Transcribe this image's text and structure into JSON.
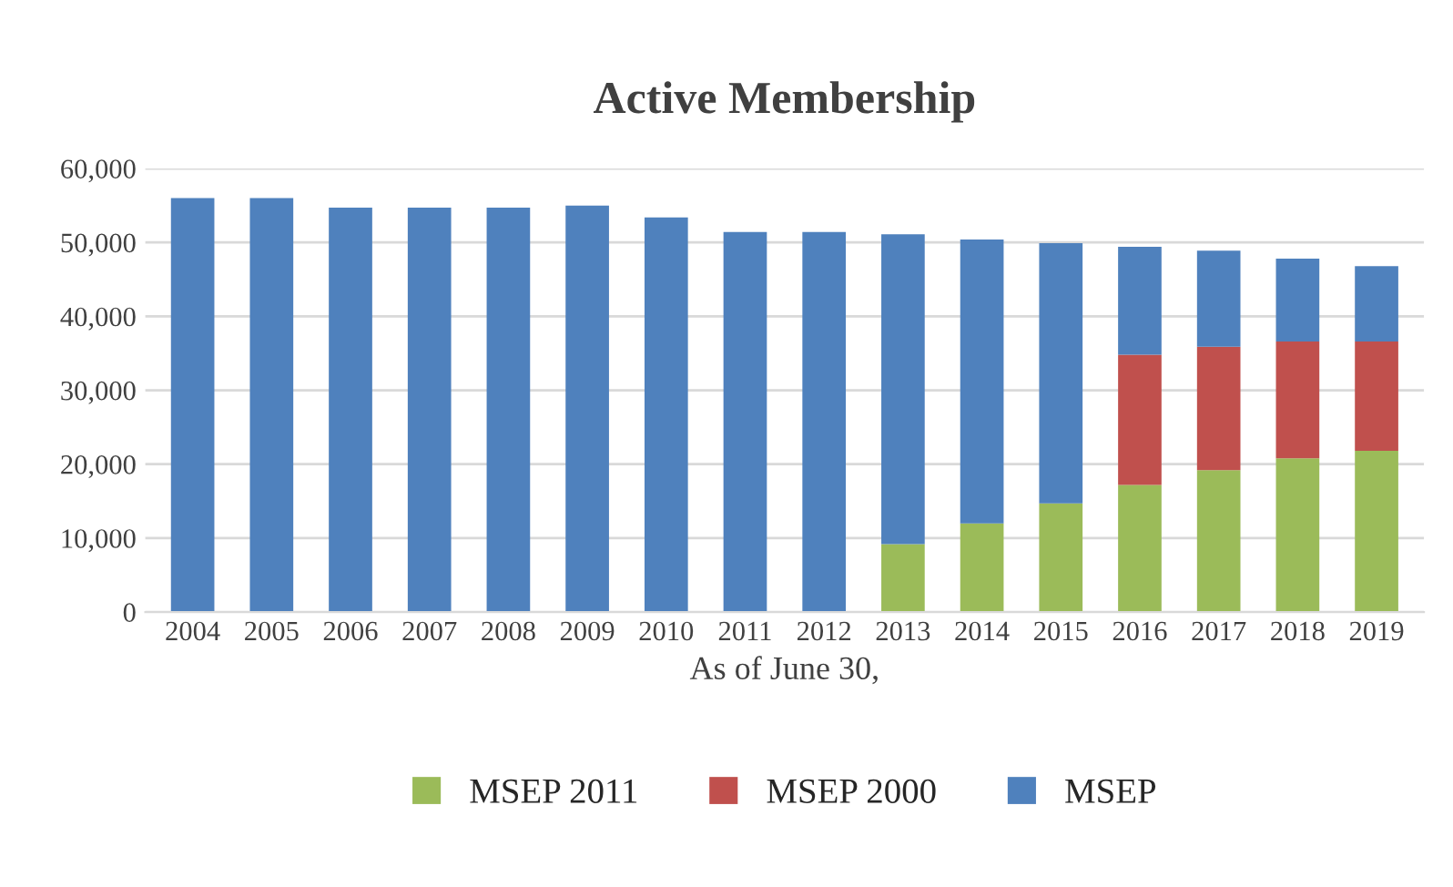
{
  "chart_data": {
    "type": "bar",
    "title": "Active Membership",
    "xlabel": "As of June 30,",
    "categories": [
      "2004",
      "2005",
      "2006",
      "2007",
      "2008",
      "2009",
      "2010",
      "2011",
      "2012",
      "2013",
      "2014",
      "2015",
      "2016",
      "2017",
      "2018",
      "2019"
    ],
    "stacked": true,
    "series": [
      {
        "name": "MSEP 2011",
        "color": "#9bbb59",
        "values": [
          0,
          0,
          0,
          0,
          0,
          0,
          0,
          0,
          0,
          9200,
          12000,
          14700,
          17200,
          19200,
          20800,
          21800
        ]
      },
      {
        "name": "MSEP 2000",
        "color": "#c0504d",
        "values": [
          0,
          0,
          0,
          0,
          0,
          0,
          0,
          0,
          0,
          0,
          0,
          0,
          17600,
          16700,
          15800,
          14800
        ]
      },
      {
        "name": "MSEP",
        "color": "#4f81bd",
        "values": [
          56000,
          56000,
          54700,
          54700,
          54700,
          55000,
          53400,
          51400,
          51400,
          41900,
          38400,
          35200,
          14600,
          13000,
          11200,
          10200
        ]
      }
    ],
    "ylim": [
      0,
      60000
    ],
    "yticks": [
      {
        "value": 0,
        "label": "0"
      },
      {
        "value": 10000,
        "label": "10,000"
      },
      {
        "value": 20000,
        "label": "20,000"
      },
      {
        "value": 30000,
        "label": "30,000"
      },
      {
        "value": 40000,
        "label": "40,000"
      },
      {
        "value": 50000,
        "label": "50,000"
      },
      {
        "value": 60000,
        "label": "60,000"
      }
    ],
    "grid": "y",
    "legend": "bottom"
  }
}
